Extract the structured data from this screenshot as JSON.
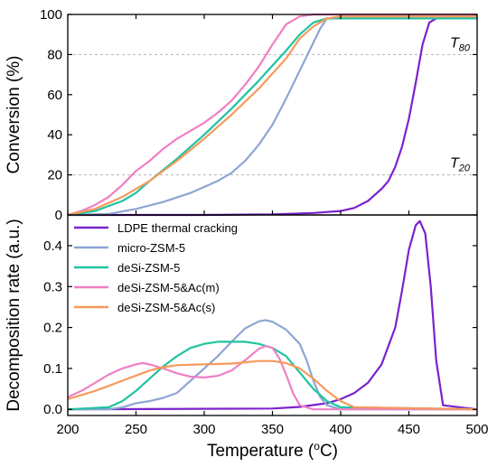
{
  "chart_data": [
    {
      "type": "line",
      "panel": "top",
      "ylabel": "Conversion (%)",
      "xlabel": "",
      "xlim": [
        200,
        500
      ],
      "ylim": [
        0,
        100
      ],
      "yticks": [
        0,
        20,
        40,
        60,
        80,
        100
      ],
      "reference_lines": [
        {
          "y": 80,
          "label_main": "T",
          "label_sub": "80"
        },
        {
          "y": 20,
          "label_main": "T",
          "label_sub": "20"
        }
      ],
      "series": [
        {
          "name": "LDPE thermal cracking",
          "color": "#7b22cc",
          "x": [
            200,
            300,
            350,
            380,
            400,
            410,
            420,
            430,
            435,
            440,
            445,
            450,
            455,
            460,
            465,
            470,
            500
          ],
          "y": [
            0,
            0,
            0.3,
            1,
            2,
            3.5,
            7,
            13,
            17,
            24,
            34,
            48,
            66,
            85,
            96,
            98,
            98
          ]
        },
        {
          "name": "micro-ZSM-5",
          "color": "#8ea5d4",
          "x": [
            200,
            230,
            250,
            270,
            290,
            310,
            320,
            330,
            340,
            350,
            360,
            370,
            380,
            385,
            390,
            500
          ],
          "y": [
            0,
            0.5,
            3,
            6.5,
            11,
            17,
            21,
            27,
            35,
            45,
            58,
            72,
            86,
            93,
            98,
            98
          ]
        },
        {
          "name": "deSi-ZSM-5",
          "color": "#1fc3a2",
          "x": [
            200,
            220,
            240,
            250,
            260,
            280,
            300,
            320,
            340,
            360,
            370,
            380,
            390,
            500
          ],
          "y": [
            0,
            2,
            7,
            11,
            17,
            28,
            40,
            53,
            67,
            82,
            90,
            96,
            98,
            98
          ]
        },
        {
          "name": "deSi-ZSM-5&Ac(m)",
          "color": "#f07fc4",
          "x": [
            200,
            210,
            220,
            230,
            240,
            250,
            260,
            270,
            280,
            290,
            300,
            310,
            320,
            330,
            340,
            350,
            360,
            370,
            380,
            500
          ],
          "y": [
            0,
            2,
            5,
            9,
            15,
            22,
            27,
            33,
            38,
            42,
            46,
            51,
            57,
            65,
            74,
            85,
            95,
            99,
            100,
            100
          ]
        },
        {
          "name": "deSi-ZSM-5&Ac(s)",
          "color": "#f59a5b",
          "x": [
            200,
            220,
            240,
            260,
            280,
            300,
            320,
            340,
            360,
            370,
            380,
            390,
            400,
            500
          ],
          "y": [
            0,
            3,
            9,
            17,
            27,
            38,
            50,
            63,
            78,
            88,
            94,
            98,
            99,
            99
          ]
        }
      ]
    },
    {
      "type": "line",
      "panel": "bottom",
      "ylabel": "Decomposition rate (a.u.)",
      "xlabel": "Temperature (°C)",
      "xlabel_main": "Temperature (",
      "xlabel_sup": "o",
      "xlabel_end": "C)",
      "xlim": [
        200,
        500
      ],
      "ylim": [
        -0.015,
        0.475
      ],
      "xticks": [
        200,
        250,
        300,
        350,
        400,
        450,
        500
      ],
      "yticks": [
        0.0,
        0.1,
        0.2,
        0.3,
        0.4
      ],
      "ytick_labels": [
        "0.0",
        "0.1",
        "0.2",
        "0.3",
        "0.4"
      ],
      "legend_position": "top-left",
      "series": [
        {
          "name": "LDPE thermal cracking",
          "color": "#7b22cc",
          "x": [
            200,
            350,
            370,
            390,
            400,
            410,
            420,
            430,
            440,
            445,
            450,
            455,
            458,
            462,
            466,
            470,
            475,
            500
          ],
          "y": [
            0,
            0.002,
            0.006,
            0.015,
            0.025,
            0.04,
            0.065,
            0.11,
            0.2,
            0.29,
            0.39,
            0.45,
            0.46,
            0.43,
            0.3,
            0.12,
            0.01,
            0
          ]
        },
        {
          "name": "micro-ZSM-5",
          "color": "#8ea5d4",
          "x": [
            200,
            230,
            240,
            250,
            260,
            270,
            280,
            290,
            300,
            310,
            320,
            330,
            340,
            345,
            350,
            360,
            370,
            375,
            380,
            385,
            390,
            400,
            500
          ],
          "y": [
            0,
            0,
            0.005,
            0.015,
            0.02,
            0.028,
            0.04,
            0.07,
            0.1,
            0.13,
            0.165,
            0.198,
            0.215,
            0.218,
            0.214,
            0.195,
            0.16,
            0.12,
            0.07,
            0.03,
            0.01,
            0,
            0
          ]
        },
        {
          "name": "deSi-ZSM-5",
          "color": "#1fc3a2",
          "x": [
            200,
            230,
            240,
            250,
            260,
            270,
            280,
            290,
            300,
            310,
            320,
            330,
            340,
            350,
            360,
            370,
            380,
            390,
            400,
            500
          ],
          "y": [
            0,
            0.005,
            0.02,
            0.045,
            0.075,
            0.105,
            0.13,
            0.15,
            0.16,
            0.165,
            0.165,
            0.165,
            0.16,
            0.15,
            0.13,
            0.09,
            0.05,
            0.02,
            0.005,
            0
          ]
        },
        {
          "name": "deSi-ZSM-5&Ac(m)",
          "color": "#f07fc4",
          "x": [
            200,
            210,
            220,
            230,
            240,
            250,
            255,
            260,
            270,
            280,
            290,
            300,
            310,
            320,
            330,
            340,
            345,
            350,
            355,
            360,
            365,
            370,
            380,
            500
          ],
          "y": [
            0.03,
            0.045,
            0.065,
            0.085,
            0.1,
            0.11,
            0.113,
            0.11,
            0.1,
            0.088,
            0.08,
            0.078,
            0.082,
            0.095,
            0.12,
            0.148,
            0.155,
            0.15,
            0.125,
            0.085,
            0.04,
            0.01,
            0,
            0
          ]
        },
        {
          "name": "deSi-ZSM-5&Ac(s)",
          "color": "#f59a5b",
          "x": [
            200,
            220,
            240,
            260,
            270,
            280,
            300,
            320,
            330,
            340,
            350,
            360,
            370,
            380,
            390,
            400,
            410,
            500
          ],
          "y": [
            0.025,
            0.045,
            0.07,
            0.095,
            0.103,
            0.108,
            0.11,
            0.112,
            0.115,
            0.118,
            0.118,
            0.113,
            0.1,
            0.075,
            0.045,
            0.02,
            0.005,
            0
          ]
        }
      ]
    }
  ]
}
